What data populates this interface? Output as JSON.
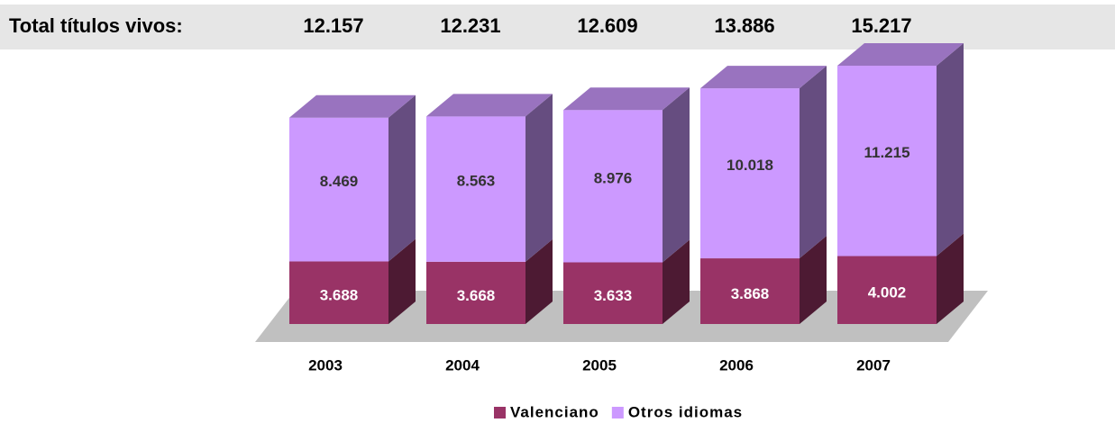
{
  "chart_data": {
    "type": "bar3d_stacked",
    "header": {
      "label": "Total títulos vivos:",
      "values": [
        12157,
        12231,
        12609,
        13886,
        15217
      ],
      "value_labels": [
        "12.157",
        "12.231",
        "12.609",
        "13.886",
        "15.217"
      ]
    },
    "categories": [
      "2003",
      "2004",
      "2005",
      "2006",
      "2007"
    ],
    "series": [
      {
        "name": "Valenciano",
        "color": "#993366",
        "values": [
          3688,
          3668,
          3633,
          3868,
          4002
        ],
        "value_labels": [
          "3.688",
          "3.668",
          "3.633",
          "3.868",
          "4.002"
        ]
      },
      {
        "name": "Otros idiomas",
        "color": "#cc99ff",
        "values": [
          8469,
          8563,
          8976,
          10018,
          11215
        ],
        "value_labels": [
          "8.469",
          "8.563",
          "8.976",
          "10.018",
          "11.215"
        ]
      }
    ],
    "legend": "bottom"
  }
}
